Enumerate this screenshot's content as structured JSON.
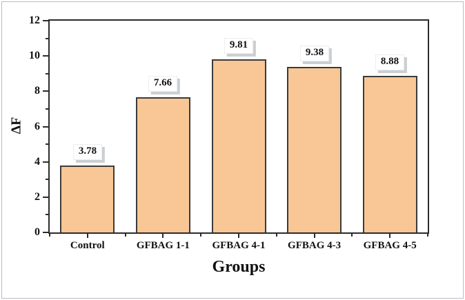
{
  "colors": {
    "bar_fill": "#F9C795",
    "bar_border": "#3A3A3A",
    "axis_frame": "#2B2B2B",
    "label_box_bg": "#FFFFFF",
    "label_box_shadow": "#CBCFD3",
    "text": "#111111",
    "outer_border": "#B6BCC2"
  },
  "chart_data": {
    "type": "bar",
    "title": "",
    "xlabel": "Groups",
    "ylabel": "ΔF",
    "categories": [
      "Control",
      "GFBAG 1-1",
      "GFBAG 4-1",
      "GFBAG 4-3",
      "GFBAG 4-5"
    ],
    "values": [
      3.78,
      7.66,
      9.81,
      9.38,
      8.88
    ],
    "value_labels": [
      "3.78",
      "7.66",
      "9.81",
      "9.38",
      "8.88"
    ],
    "ylim": [
      0,
      12
    ],
    "y_major_ticks": [
      0,
      2,
      4,
      6,
      8,
      10,
      12
    ],
    "y_minor_ticks": [
      1,
      3,
      5,
      7,
      9,
      11
    ],
    "grid": false,
    "legend": null,
    "frame": "full-box",
    "tick_direction": "out"
  }
}
